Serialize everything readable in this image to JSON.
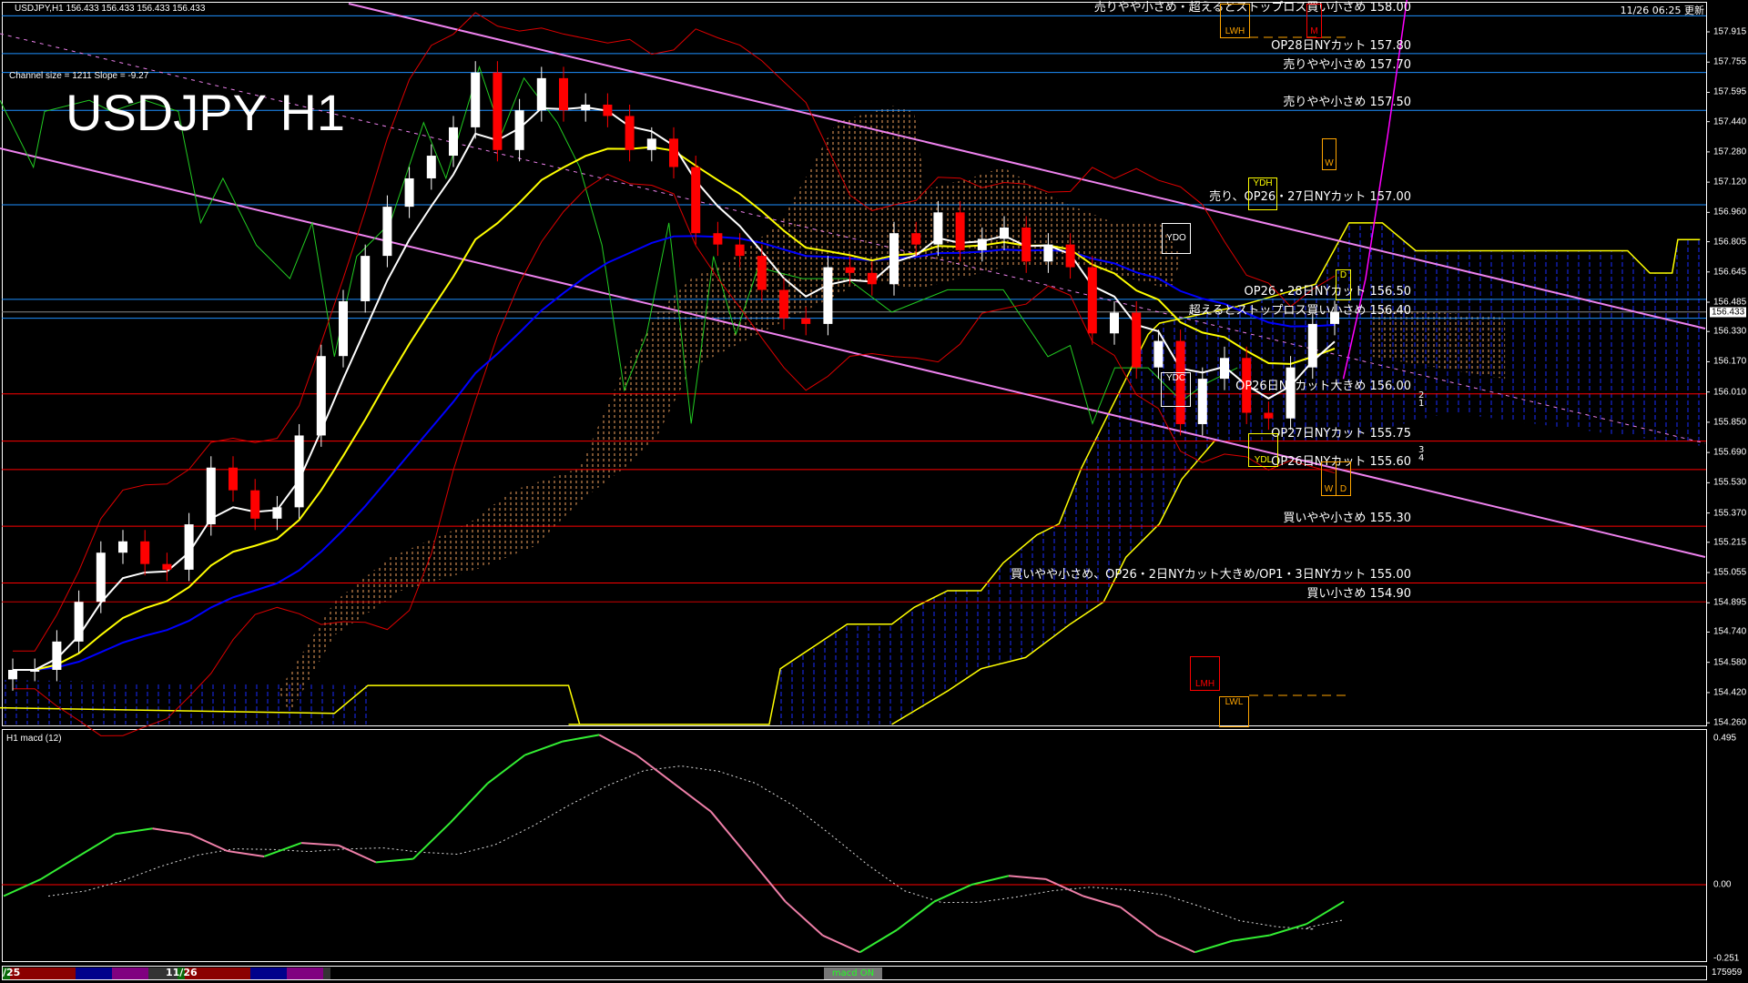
{
  "window": {
    "symbol_line": "USDJPY,H1  156.433 156.433 156.433 156.433",
    "big_title": "USDJPY H1",
    "channel_info": "Channel size = 1211 Slope = -9.27",
    "update_time": "11/26 06:25 更新",
    "current_price": "156.433"
  },
  "colors": {
    "background": "#000000",
    "bull_candle": "#ffffff",
    "bear_candle": "#ff0000",
    "resistance_line": "#1e90ff",
    "support_line": "#ff0000",
    "channel": "#ee82ee",
    "ma_fast": "#ffffff",
    "ma_mid": "#ffff00",
    "ma_slow": "#0000ff",
    "cloud_future": "#1a2cff",
    "cloud_past": "#f4a460",
    "macd_up": "#33ee33",
    "macd_down": "#ee7fa8"
  },
  "levels": [
    {
      "price": 158.0,
      "label": "売りやや小さめ・超えるとストップロス買い小さめ 158.00",
      "color": "#1e90ff"
    },
    {
      "price": 157.8,
      "label": "OP28日NYカット 157.80",
      "color": "#1e90ff"
    },
    {
      "price": 157.7,
      "label": "売りやや小さめ 157.70",
      "color": "#1e90ff"
    },
    {
      "price": 157.5,
      "label": "売りやや小さめ 157.50",
      "color": "#1e90ff"
    },
    {
      "price": 157.0,
      "label": "売り、OP26・27日NYカット 157.00",
      "color": "#1e90ff"
    },
    {
      "price": 156.5,
      "label": "OP26・28日NYカット 156.50",
      "color": "#1e90ff"
    },
    {
      "price": 156.4,
      "label": "超えるとストップロス買い小さめ 156.40",
      "color": "#1e90ff"
    },
    {
      "price": 156.0,
      "label": "OP26日NYカット大きめ 156.00",
      "color": "#ff0000"
    },
    {
      "price": 155.75,
      "label": "OP27日NYカット 155.75",
      "color": "#ff0000"
    },
    {
      "price": 155.6,
      "label": "OP26日NYカット 155.60",
      "color": "#ff0000"
    },
    {
      "price": 155.3,
      "label": "買いやや小さめ 155.30",
      "color": "#ff0000"
    },
    {
      "price": 155.0,
      "label": "買いやや小さめ、OP26・2日NYカット大きめ/OP1・3日NYカット 155.00",
      "color": "#ff0000"
    },
    {
      "price": 154.9,
      "label": "買い小さめ 154.90",
      "color": "#cc0000"
    }
  ],
  "markers": {
    "lwh": "LWH",
    "m": "M",
    "ydh": "YDH",
    "d1": "D",
    "ydo": "YDO",
    "ydc": "YDC",
    "ydl": "YDL",
    "w": "W",
    "d2": "D",
    "vv": "W",
    "lmh": "LMH",
    "lwl": "LWL",
    "arrow_nums_a": "2\n1",
    "arrow_nums_b": "3\n4"
  },
  "chart_data": [
    {
      "type": "candlestick",
      "symbol": "USDJPY",
      "timeframe": "H1",
      "ylim": [
        154.26,
        157.915
      ],
      "y_ticks": [
        "157.915",
        "157.755",
        "157.595",
        "157.440",
        "157.280",
        "157.120",
        "156.960",
        "156.805",
        "156.645",
        "156.485",
        "156.330",
        "156.170",
        "156.010",
        "155.850",
        "155.690",
        "155.530",
        "155.370",
        "155.215",
        "155.055",
        "154.895",
        "154.740",
        "154.580",
        "154.420",
        "154.260"
      ],
      "closes": [
        154.54,
        154.54,
        154.69,
        154.9,
        155.16,
        155.22,
        155.1,
        155.07,
        155.31,
        155.61,
        155.49,
        155.34,
        155.4,
        155.78,
        156.2,
        156.49,
        156.73,
        156.99,
        157.14,
        157.26,
        157.41,
        157.7,
        157.29,
        157.5,
        157.67,
        157.5,
        157.53,
        157.47,
        157.29,
        157.35,
        157.2,
        156.85,
        156.79,
        156.73,
        156.55,
        156.4,
        156.37,
        156.67,
        156.64,
        156.58,
        156.85,
        156.79,
        156.96,
        156.76,
        156.82,
        156.88,
        156.7,
        156.79,
        156.67,
        156.32,
        156.43,
        156.14,
        156.28,
        155.84,
        156.08,
        156.19,
        155.9,
        155.87,
        156.14,
        156.37,
        156.433
      ],
      "channel": {
        "size": 1211,
        "slope": -9.27
      }
    },
    {
      "type": "line",
      "title": "H1  macd (12)",
      "ylim": [
        -0.251,
        0.495
      ],
      "y_ticks": [
        "0.495",
        "0.00",
        "-0.251"
      ],
      "macd": [
        -0.037,
        0.018,
        0.092,
        0.165,
        0.183,
        0.165,
        0.11,
        0.092,
        0.136,
        0.128,
        0.073,
        0.084,
        0.202,
        0.33,
        0.422,
        0.466,
        0.488,
        0.422,
        0.33,
        0.238,
        0.092,
        -0.055,
        -0.165,
        -0.22,
        -0.147,
        -0.055,
        0.0,
        0.029,
        0.018,
        -0.037,
        -0.073,
        -0.165,
        -0.22,
        -0.183,
        -0.165,
        -0.128,
        -0.055
      ]
    }
  ],
  "bottom_bar": {
    "date_a": "/25",
    "date_b": "11/26",
    "macd_button": "macd ON",
    "counter": "175959"
  }
}
